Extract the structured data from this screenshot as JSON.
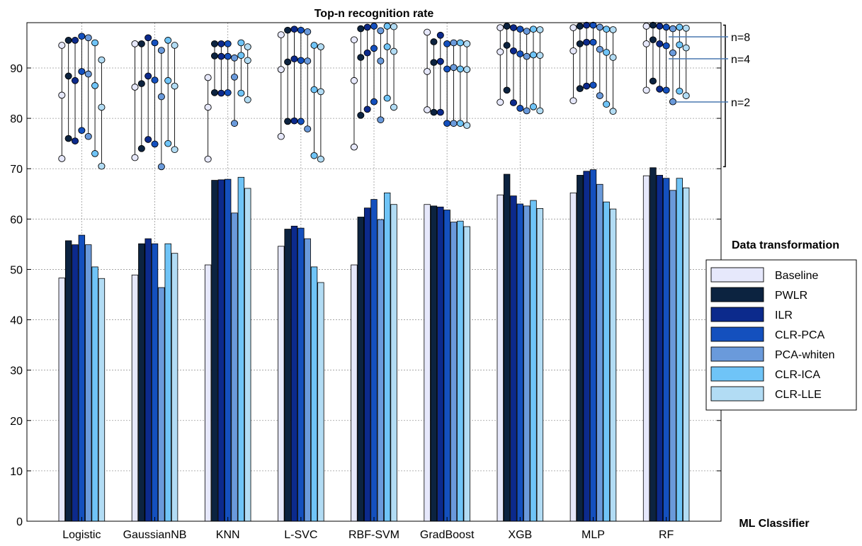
{
  "chart_data": {
    "type": "bar",
    "title": "Top-n recognition rate",
    "xlabel": "ML Classifier",
    "ylabel": "",
    "ylim": [
      0,
      99
    ],
    "yticks": [
      0,
      10,
      20,
      30,
      40,
      50,
      60,
      70,
      80,
      90
    ],
    "grid": true,
    "categories": [
      "Logistic",
      "GaussianNB",
      "KNN",
      "L-SVC",
      "RBF-SVM",
      "GradBoost",
      "XGB",
      "MLP",
      "RF"
    ],
    "legend": {
      "title": "Data transformation",
      "position": "right"
    },
    "series": [
      {
        "name": "Baseline",
        "color": "#e6e8fb",
        "values": [
          48.3,
          48.9,
          50.9,
          54.6,
          50.9,
          62.9,
          64.8,
          65.2,
          68.6
        ],
        "top_n": {
          "n2": [
            72.0,
            72.2,
            71.9,
            76.4,
            74.3,
            81.7,
            83.2,
            83.5,
            85.6
          ],
          "n4": [
            84.6,
            86.2,
            82.2,
            89.7,
            87.5,
            89.3,
            93.2,
            93.4,
            94.8
          ],
          "n8": [
            94.5,
            94.8,
            88.1,
            96.6,
            95.6,
            97.1,
            98.0,
            98.0,
            98.3
          ]
        }
      },
      {
        "name": "PWLR",
        "color": "#0c2340",
        "values": [
          55.7,
          55.1,
          67.7,
          58.0,
          60.4,
          62.6,
          68.9,
          68.7,
          70.2
        ],
        "top_n": {
          "n2": [
            76.0,
            74.0,
            85.1,
            79.4,
            80.6,
            81.2,
            85.6,
            85.9,
            87.4
          ],
          "n4": [
            88.4,
            86.9,
            92.4,
            91.2,
            92.1,
            91.1,
            94.5,
            94.8,
            95.6
          ],
          "n8": [
            95.5,
            94.8,
            94.8,
            97.5,
            97.8,
            95.2,
            98.3,
            98.3,
            98.5
          ]
        }
      },
      {
        "name": "ILR",
        "color": "#0c2a8c",
        "values": [
          54.9,
          56.1,
          67.8,
          58.6,
          62.2,
          62.4,
          64.6,
          69.5,
          68.7
        ],
        "top_n": {
          "n2": [
            75.5,
            75.8,
            85.0,
            79.5,
            81.8,
            81.2,
            83.1,
            86.4,
            85.8
          ],
          "n4": [
            87.5,
            88.4,
            92.3,
            91.8,
            93.0,
            91.3,
            93.4,
            95.1,
            94.8
          ],
          "n8": [
            95.5,
            96.0,
            94.8,
            97.7,
            98.1,
            96.5,
            98.0,
            98.5,
            98.3
          ]
        }
      },
      {
        "name": "CLR-PCA",
        "color": "#1450be",
        "values": [
          56.8,
          55.1,
          67.9,
          58.2,
          63.9,
          61.8,
          63.0,
          69.8,
          68.1
        ],
        "top_n": {
          "n2": [
            77.6,
            74.9,
            85.1,
            79.4,
            83.3,
            79.0,
            82.0,
            86.6,
            85.6
          ],
          "n4": [
            89.3,
            87.6,
            92.3,
            91.5,
            93.9,
            89.8,
            92.8,
            95.1,
            94.4
          ],
          "n8": [
            96.3,
            95.0,
            94.8,
            97.5,
            98.3,
            94.8,
            97.7,
            98.5,
            98.1
          ]
        }
      },
      {
        "name": "PCA-whiten",
        "color": "#6a9adb",
        "values": [
          54.9,
          46.4,
          61.2,
          56.1,
          59.9,
          59.4,
          62.6,
          66.9,
          65.7
        ],
        "top_n": {
          "n2": [
            76.4,
            70.4,
            79.0,
            77.9,
            79.7,
            79.0,
            81.5,
            84.5,
            83.3
          ],
          "n4": [
            88.8,
            84.3,
            88.2,
            91.4,
            91.4,
            90.1,
            92.3,
            93.7,
            93.0
          ],
          "n8": [
            96.0,
            93.5,
            92.0,
            97.2,
            97.4,
            95.0,
            97.3,
            98.1,
            97.8
          ]
        }
      },
      {
        "name": "CLR-ICA",
        "color": "#6fc4f7",
        "values": [
          50.5,
          55.1,
          68.3,
          50.5,
          65.2,
          59.6,
          63.7,
          63.4,
          68.1
        ],
        "top_n": {
          "n2": [
            73.0,
            75.0,
            85.0,
            72.6,
            84.0,
            79.0,
            82.3,
            82.8,
            85.4
          ],
          "n4": [
            86.5,
            87.5,
            92.5,
            85.7,
            94.2,
            89.8,
            92.6,
            93.1,
            94.6
          ],
          "n8": [
            95.0,
            95.5,
            95.0,
            94.5,
            98.3,
            95.0,
            97.7,
            97.7,
            98.1
          ]
        }
      },
      {
        "name": "CLR-LLE",
        "color": "#b2dcf4",
        "values": [
          48.2,
          53.2,
          66.1,
          47.4,
          62.9,
          58.5,
          62.1,
          62.0,
          66.2
        ],
        "top_n": {
          "n2": [
            70.5,
            73.8,
            83.7,
            71.9,
            82.2,
            78.6,
            81.5,
            81.4,
            84.5
          ],
          "n4": [
            82.2,
            86.4,
            91.5,
            85.3,
            93.3,
            89.7,
            92.5,
            92.1,
            94.0
          ],
          "n8": [
            91.6,
            94.5,
            94.2,
            94.2,
            98.2,
            94.8,
            97.6,
            97.6,
            97.9
          ]
        }
      }
    ],
    "annotations": [
      "n=8",
      "n=4",
      "n=2"
    ]
  }
}
